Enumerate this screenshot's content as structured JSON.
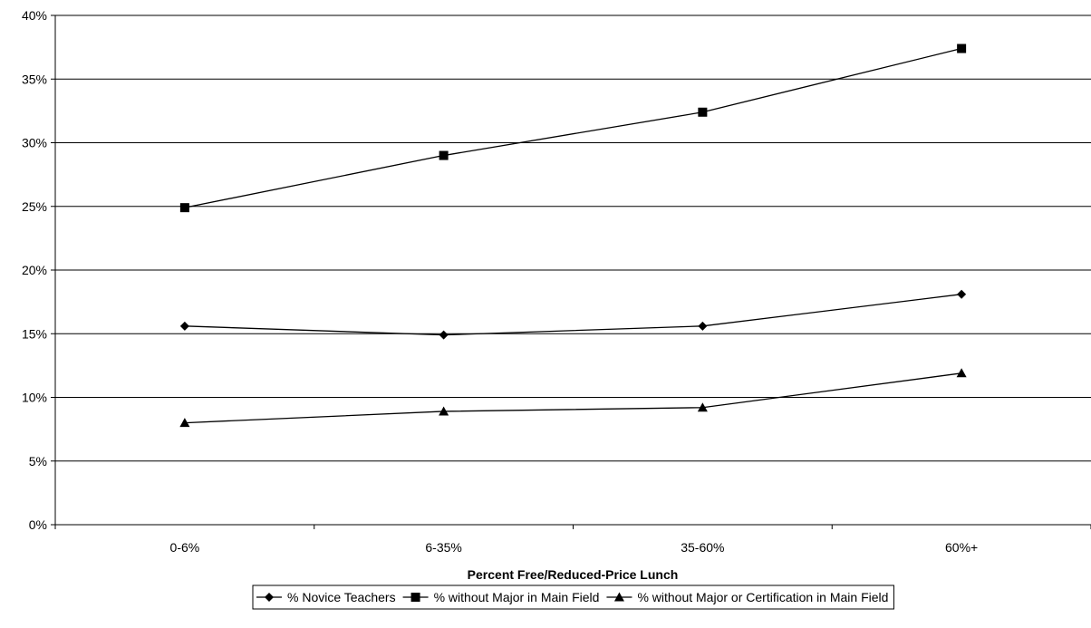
{
  "chart_data": {
    "type": "line",
    "title": "",
    "xlabel": "Percent Free/Reduced-Price Lunch",
    "ylabel": "",
    "categories": [
      "0-6%",
      "6-35%",
      "35-60%",
      "60%+"
    ],
    "ylim": [
      0,
      40
    ],
    "yticks": [
      0,
      5,
      10,
      15,
      20,
      25,
      30,
      35,
      40
    ],
    "ytick_labels": [
      "0%",
      "5%",
      "10%",
      "15%",
      "20%",
      "25%",
      "30%",
      "35%",
      "40%"
    ],
    "grid": "horizontal major gridlines",
    "legend_position": "bottom",
    "series": [
      {
        "name": "% Novice Teachers",
        "marker": "diamond",
        "values": [
          15.6,
          14.9,
          15.6,
          18.1
        ]
      },
      {
        "name": "% without Major in Main Field",
        "marker": "square",
        "values": [
          24.9,
          29.0,
          32.4,
          37.4
        ]
      },
      {
        "name": "% without Major or Certification in Main Field",
        "marker": "triangle",
        "values": [
          8.0,
          8.9,
          9.2,
          11.9
        ]
      }
    ],
    "colors": {
      "line": "#000000",
      "grid": "#000000",
      "background": "#ffffff"
    }
  }
}
